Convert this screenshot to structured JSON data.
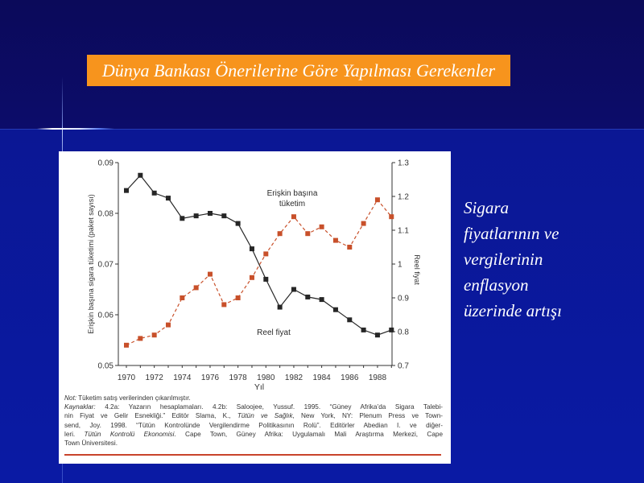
{
  "slide": {
    "title": "Dünya Bankası Önerilerine Göre Yapılması Gerekenler",
    "side_text_lines": [
      "Sigara",
      "fiyatlarının ve",
      "vergilerinin",
      "enflasyon",
      "üzerinde artışı"
    ]
  },
  "colors": {
    "slide_background_top": "#0c0b62",
    "slide_background_bottom": "#0a1899",
    "title_background": "#f7941d",
    "title_text": "#ffffff",
    "chart_background": "#ffffff",
    "chart_bottom_rule": "#c8432b"
  },
  "chart_data": {
    "type": "line",
    "x": [
      1970,
      1971,
      1972,
      1973,
      1974,
      1975,
      1976,
      1977,
      1978,
      1979,
      1980,
      1981,
      1982,
      1983,
      1984,
      1985,
      1986,
      1987,
      1988,
      1989
    ],
    "xticks": [
      1970,
      1972,
      1974,
      1976,
      1978,
      1980,
      1982,
      1984,
      1986,
      1988
    ],
    "xlabel": "Yıl",
    "ylabel": "Erişkin başına sigara tüketimi (paket sayısı)",
    "ylabel_right": "Reel fiyat",
    "ylim": [
      0.05,
      0.09
    ],
    "ylim_right": [
      0.7,
      1.3
    ],
    "yticks_left": [
      "0.09",
      "0.08",
      "0.07",
      "0.06",
      "0.05"
    ],
    "yticks_right": [
      "1.3",
      "1.2",
      "1.1",
      "1",
      "0.9",
      "0.8",
      "0.7"
    ],
    "grid": false,
    "series": [
      {
        "name": "Erişkin başına tüketim",
        "axis": "left",
        "line": "solid",
        "marker": "square",
        "color": "#262626",
        "values": [
          0.0845,
          0.0875,
          0.084,
          0.083,
          0.079,
          0.0795,
          0.08,
          0.0795,
          0.078,
          0.073,
          0.067,
          0.0615,
          0.065,
          0.0635,
          0.063,
          0.061,
          0.059,
          0.057,
          0.056,
          0.057
        ]
      },
      {
        "name": "Reel fiyat",
        "axis": "right",
        "line": "dashed",
        "marker": "square",
        "color": "#c8502a",
        "values": [
          0.76,
          0.78,
          0.79,
          0.82,
          0.9,
          0.93,
          0.97,
          0.88,
          0.9,
          0.96,
          1.03,
          1.09,
          1.14,
          1.09,
          1.11,
          1.07,
          1.05,
          1.12,
          1.19,
          1.14
        ]
      }
    ]
  },
  "notes": {
    "lines": [
      [
        {
          "text": "Not:",
          "italic": true
        },
        {
          "text": " Tüketim satış verilerinden çıkarılmıştır.",
          "italic": false
        }
      ],
      [
        {
          "text": "Kaynaklar:",
          "italic": true
        },
        {
          "text": " 4.2a: Yazarın hesaplamaları. 4.2b: Saloojee, Yussuf. 1995. “Güney Afrika’da Sigara Talebi-",
          "italic": false
        }
      ],
      [
        {
          "text": "nin Fiyat ve Gelir Esnekliği.” Editör Slama, K., ",
          "italic": false
        },
        {
          "text": "Tütün ve Sağlık",
          "italic": true
        },
        {
          "text": ", New York, NY: Plenum Press ve Town-",
          "italic": false
        }
      ],
      [
        {
          "text": "send, Joy. 1998. “Tütün Kontrolünde Vergilendirme Politikasının Rolü”. Editörler Abedian I. ve diğer-",
          "italic": false
        }
      ],
      [
        {
          "text": "leri. ",
          "italic": false
        },
        {
          "text": "Tütün Kontrolü Ekonomisi",
          "italic": true
        },
        {
          "text": ". Cape Town, Güney Afrika: Uygulamalı Mali Araştırma Merkezi, Cape",
          "italic": false
        }
      ],
      [
        {
          "text": "Town Üniversitesi.",
          "italic": false
        }
      ]
    ]
  }
}
